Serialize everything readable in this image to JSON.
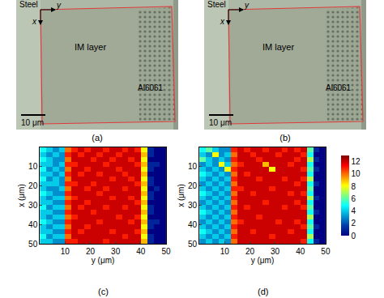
{
  "images": [
    {
      "label": "(a)",
      "steel": "Steel",
      "axis_x": "x",
      "axis_y": "y",
      "layer": "IM layer",
      "substrate": "Al6061",
      "scale_bar": "10 μm"
    },
    {
      "label": "(b)",
      "steel": "Steel",
      "axis_x": "x",
      "axis_y": "y",
      "layer": "IM layer",
      "substrate": "Al6061",
      "scale_bar": "10 μm"
    }
  ],
  "colorbar": {
    "range": [
      0,
      13
    ],
    "ticks": [
      0,
      2,
      4,
      6,
      8,
      10,
      12
    ]
  },
  "chart_data": [
    {
      "type": "heatmap",
      "label": "(c)",
      "x_label": "y (μm)",
      "y_label": "x (μm)",
      "xlim": [
        0,
        50
      ],
      "xticks": [
        10,
        20,
        30,
        40,
        50
      ],
      "ylim": [
        50,
        0
      ],
      "yticks": [
        10,
        20,
        30,
        40,
        50
      ],
      "x": [
        1.25,
        3.75,
        6.25,
        8.75,
        11.25,
        13.75,
        16.25,
        18.75,
        21.25,
        23.75,
        26.25,
        28.75,
        31.25,
        33.75,
        36.25,
        38.75,
        41.25,
        43.75,
        46.25,
        48.75
      ],
      "y": [
        1.25,
        3.75,
        6.25,
        8.75,
        11.25,
        13.75,
        16.25,
        18.75,
        21.25,
        23.75,
        26.25,
        28.75,
        31.25,
        33.75,
        36.25,
        38.75,
        41.25,
        43.75,
        46.25,
        48.75
      ],
      "cells": [
        [
          5,
          4,
          3,
          4,
          10,
          11,
          12,
          11,
          12,
          12,
          11,
          12,
          12,
          11,
          12,
          11,
          8,
          1,
          0,
          0
        ],
        [
          4,
          3,
          4,
          3,
          11,
          12,
          11,
          12,
          12,
          11,
          12,
          12,
          11,
          12,
          12,
          12,
          9,
          1,
          0,
          0
        ],
        [
          5,
          4,
          3,
          3,
          10,
          12,
          12,
          12,
          11,
          12,
          12,
          11,
          12,
          12,
          11,
          12,
          8,
          0,
          0,
          0
        ],
        [
          4,
          4,
          3,
          4,
          11,
          11,
          12,
          12,
          12,
          12,
          11,
          12,
          12,
          12,
          12,
          11,
          9,
          1,
          1,
          0
        ],
        [
          5,
          3,
          4,
          3,
          10,
          12,
          12,
          11,
          12,
          12,
          12,
          12,
          11,
          12,
          12,
          12,
          8,
          1,
          0,
          0
        ],
        [
          4,
          4,
          3,
          4,
          11,
          12,
          11,
          12,
          12,
          11,
          12,
          12,
          12,
          11,
          12,
          12,
          9,
          0,
          0,
          0
        ],
        [
          5,
          3,
          4,
          3,
          10,
          12,
          12,
          12,
          12,
          12,
          12,
          11,
          12,
          12,
          11,
          12,
          8,
          1,
          0,
          0
        ],
        [
          4,
          4,
          4,
          3,
          11,
          11,
          12,
          12,
          11,
          12,
          12,
          12,
          12,
          12,
          12,
          11,
          9,
          1,
          0,
          0
        ],
        [
          4,
          3,
          3,
          4,
          10,
          12,
          12,
          11,
          12,
          12,
          11,
          12,
          12,
          11,
          12,
          12,
          8,
          0,
          1,
          0
        ],
        [
          5,
          4,
          3,
          3,
          11,
          12,
          12,
          12,
          12,
          11,
          12,
          12,
          12,
          12,
          12,
          12,
          9,
          1,
          0,
          0
        ],
        [
          4,
          3,
          4,
          4,
          10,
          11,
          12,
          12,
          12,
          12,
          12,
          11,
          12,
          12,
          11,
          12,
          8,
          1,
          0,
          0
        ],
        [
          4,
          4,
          3,
          3,
          11,
          12,
          12,
          11,
          12,
          12,
          12,
          12,
          12,
          12,
          12,
          11,
          9,
          0,
          0,
          0
        ],
        [
          5,
          3,
          4,
          4,
          10,
          12,
          11,
          12,
          12,
          12,
          11,
          12,
          12,
          11,
          12,
          12,
          8,
          1,
          0,
          0
        ],
        [
          4,
          4,
          3,
          3,
          11,
          12,
          12,
          12,
          11,
          12,
          12,
          12,
          12,
          12,
          12,
          12,
          9,
          1,
          0,
          0
        ],
        [
          4,
          3,
          4,
          4,
          10,
          11,
          12,
          12,
          12,
          12,
          12,
          12,
          11,
          12,
          12,
          11,
          8,
          0,
          0,
          0
        ],
        [
          5,
          4,
          3,
          3,
          11,
          12,
          12,
          12,
          12,
          11,
          12,
          12,
          12,
          12,
          11,
          12,
          9,
          1,
          1,
          0
        ],
        [
          4,
          3,
          4,
          4,
          10,
          12,
          12,
          11,
          12,
          12,
          12,
          12,
          12,
          12,
          12,
          12,
          8,
          1,
          0,
          0
        ],
        [
          4,
          4,
          3,
          3,
          11,
          12,
          11,
          12,
          12,
          12,
          12,
          11,
          12,
          12,
          12,
          11,
          9,
          0,
          0,
          0
        ],
        [
          5,
          3,
          4,
          4,
          10,
          12,
          12,
          12,
          12,
          12,
          12,
          12,
          12,
          11,
          12,
          12,
          8,
          1,
          0,
          0
        ],
        [
          4,
          4,
          3,
          3,
          11,
          11,
          12,
          12,
          12,
          12,
          11,
          12,
          12,
          12,
          12,
          12,
          9,
          1,
          0,
          0
        ]
      ]
    },
    {
      "type": "heatmap",
      "label": "(d)",
      "x_label": "y (μm)",
      "y_label": "x (μm)",
      "xlim": [
        0,
        50
      ],
      "xticks": [
        10,
        20,
        30,
        40,
        50
      ],
      "ylim": [
        50,
        0
      ],
      "yticks": [
        10,
        20,
        30,
        40,
        50
      ],
      "x": [
        1.25,
        3.75,
        6.25,
        8.75,
        11.25,
        13.75,
        16.25,
        18.75,
        21.25,
        23.75,
        26.25,
        28.75,
        31.25,
        33.75,
        36.25,
        38.75,
        41.25,
        43.75,
        46.25,
        48.75
      ],
      "y": [
        1.25,
        3.75,
        6.25,
        8.75,
        11.25,
        13.75,
        16.25,
        18.75,
        21.25,
        23.75,
        26.25,
        28.75,
        31.25,
        33.75,
        36.25,
        38.75,
        41.25,
        43.75,
        46.25,
        48.75
      ],
      "cells": [
        [
          5,
          6,
          4,
          3,
          3,
          11,
          12,
          11,
          12,
          12,
          11,
          12,
          12,
          11,
          12,
          11,
          12,
          6,
          1,
          0
        ],
        [
          4,
          3,
          8,
          3,
          4,
          10,
          12,
          12,
          11,
          12,
          12,
          12,
          11,
          12,
          12,
          12,
          11,
          5,
          0,
          0
        ],
        [
          6,
          4,
          3,
          4,
          3,
          11,
          12,
          12,
          12,
          11,
          12,
          12,
          12,
          12,
          12,
          11,
          12,
          7,
          1,
          0
        ],
        [
          3,
          4,
          3,
          8,
          4,
          10,
          11,
          12,
          12,
          12,
          9,
          12,
          12,
          12,
          11,
          12,
          12,
          5,
          0,
          0
        ],
        [
          4,
          3,
          4,
          3,
          8,
          11,
          12,
          12,
          12,
          12,
          12,
          8,
          12,
          12,
          12,
          12,
          11,
          6,
          1,
          0
        ],
        [
          5,
          4,
          3,
          4,
          3,
          10,
          12,
          11,
          12,
          12,
          12,
          12,
          12,
          12,
          12,
          12,
          12,
          5,
          0,
          0
        ],
        [
          4,
          3,
          4,
          3,
          4,
          11,
          12,
          12,
          12,
          11,
          12,
          12,
          12,
          11,
          12,
          12,
          11,
          7,
          0,
          0
        ],
        [
          3,
          4,
          3,
          4,
          3,
          10,
          12,
          12,
          12,
          12,
          12,
          12,
          12,
          12,
          12,
          11,
          12,
          5,
          1,
          0
        ],
        [
          4,
          3,
          4,
          3,
          4,
          11,
          11,
          12,
          12,
          12,
          12,
          11,
          12,
          12,
          12,
          12,
          12,
          6,
          0,
          0
        ],
        [
          5,
          4,
          3,
          4,
          3,
          10,
          12,
          12,
          11,
          12,
          12,
          12,
          12,
          12,
          11,
          12,
          11,
          5,
          0,
          0
        ],
        [
          4,
          3,
          4,
          3,
          4,
          11,
          12,
          12,
          12,
          12,
          12,
          12,
          12,
          12,
          12,
          12,
          12,
          7,
          1,
          0
        ],
        [
          3,
          4,
          3,
          4,
          3,
          10,
          12,
          12,
          12,
          12,
          11,
          12,
          12,
          12,
          12,
          11,
          12,
          5,
          0,
          0
        ],
        [
          4,
          3,
          4,
          3,
          4,
          11,
          12,
          11,
          12,
          12,
          12,
          12,
          12,
          11,
          12,
          12,
          11,
          6,
          0,
          0
        ],
        [
          5,
          4,
          3,
          4,
          3,
          10,
          12,
          12,
          12,
          12,
          12,
          12,
          12,
          12,
          12,
          12,
          12,
          5,
          1,
          0
        ],
        [
          4,
          3,
          4,
          3,
          4,
          11,
          12,
          12,
          12,
          11,
          12,
          12,
          12,
          12,
          12,
          12,
          12,
          7,
          0,
          0
        ],
        [
          3,
          4,
          3,
          4,
          3,
          10,
          11,
          12,
          12,
          12,
          12,
          12,
          11,
          12,
          12,
          11,
          12,
          5,
          0,
          0
        ],
        [
          4,
          3,
          4,
          3,
          4,
          11,
          12,
          12,
          12,
          12,
          12,
          12,
          12,
          12,
          12,
          12,
          11,
          6,
          1,
          0
        ],
        [
          5,
          4,
          3,
          4,
          3,
          10,
          12,
          12,
          11,
          12,
          12,
          12,
          12,
          12,
          11,
          12,
          12,
          5,
          0,
          0
        ],
        [
          4,
          3,
          4,
          3,
          4,
          11,
          12,
          12,
          12,
          12,
          12,
          11,
          12,
          12,
          12,
          12,
          12,
          7,
          0,
          0
        ],
        [
          3,
          4,
          3,
          4,
          3,
          10,
          12,
          12,
          12,
          12,
          12,
          12,
          12,
          12,
          12,
          12,
          11,
          5,
          1,
          0
        ]
      ]
    }
  ]
}
